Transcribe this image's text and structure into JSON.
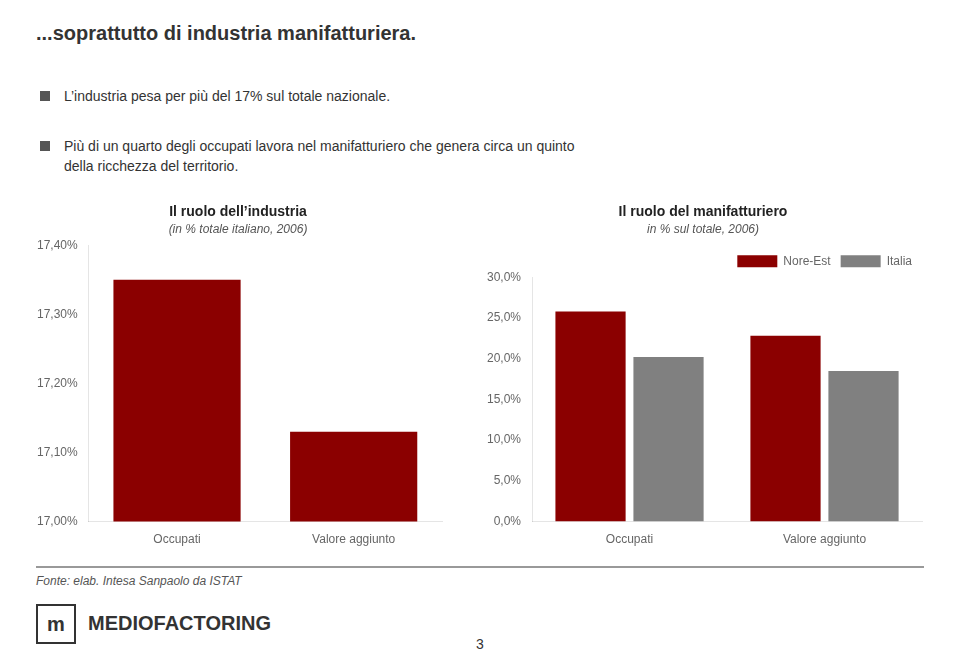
{
  "title": "...soprattutto di industria manifatturiera.",
  "annotations": [
    "L’industria pesa per più del 17% sul totale nazionale.",
    "Più di un quarto degli occupati lavora nel manifatturiero che genera circa un quinto",
    "della ricchezza del territorio.",
    "Fonte: elab. Intesa Sanpaolo da ISTAT",
    "m",
    "MEDIOFACTORING",
    "3"
  ],
  "chart_data": [
    {
      "type": "bar",
      "title": "Il ruolo dell’industria",
      "subtitle": "(in % totale italiano, 2006)",
      "categories": [
        "Occupati",
        "Valore aggiunto"
      ],
      "values": [
        17.35,
        17.13
      ],
      "color": "#8B0000",
      "ylim": [
        17.0,
        17.4
      ],
      "yticks": [
        {
          "value": 17.0,
          "label": "17,00%"
        },
        {
          "value": 17.1,
          "label": "17,10%"
        },
        {
          "value": 17.2,
          "label": "17,20%"
        },
        {
          "value": 17.3,
          "label": "17,30%"
        },
        {
          "value": 17.4,
          "label": "17,40%"
        }
      ],
      "grid": false
    },
    {
      "type": "bar",
      "title": "Il ruolo del manifatturiero",
      "subtitle": "in % sul totale, 2006)",
      "categories": [
        "Occupati",
        "Valore aggiunto"
      ],
      "series": [
        {
          "name": "Nore-Est",
          "color": "#8B0000",
          "values": [
            25.8,
            22.8
          ]
        },
        {
          "name": "Italia",
          "color": "#808080",
          "values": [
            20.2,
            18.5
          ]
        }
      ],
      "ylim": [
        0,
        30
      ],
      "yticks": [
        {
          "value": 0,
          "label": "0,0%"
        },
        {
          "value": 5,
          "label": "5,0%"
        },
        {
          "value": 10,
          "label": "10,0%"
        },
        {
          "value": 15,
          "label": "15,0%"
        },
        {
          "value": 20,
          "label": "20,0%"
        },
        {
          "value": 25,
          "label": "25,0%"
        },
        {
          "value": 30,
          "label": "30,0%"
        }
      ],
      "grid": false,
      "legend": "upper right"
    }
  ]
}
